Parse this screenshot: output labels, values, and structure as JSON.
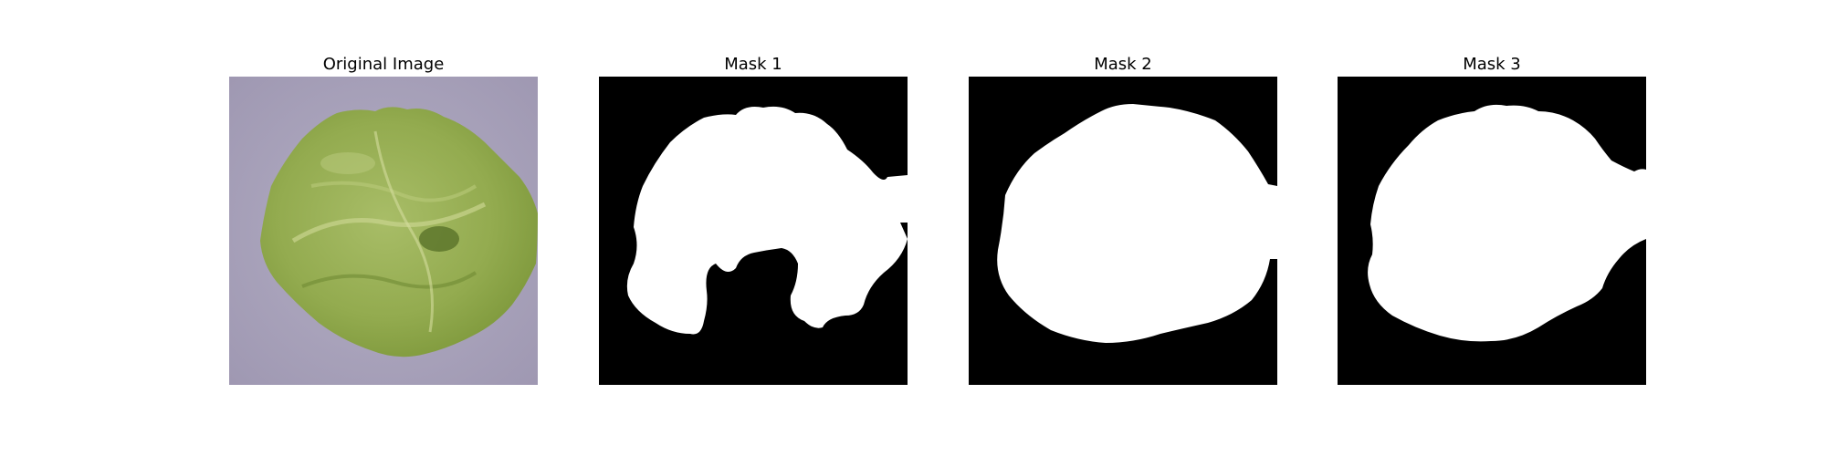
{
  "panels": [
    {
      "title": "Original Image"
    },
    {
      "title": "Mask 1"
    },
    {
      "title": "Mask 2"
    },
    {
      "title": "Mask 3"
    }
  ],
  "colors": {
    "background": "#ffffff",
    "mask_background": "#000000",
    "mask_foreground": "#ffffff",
    "leaf_green": "#9bb058",
    "leaf_dark": "#6e8a34",
    "backdrop_lavender": "#a9a3b9"
  }
}
